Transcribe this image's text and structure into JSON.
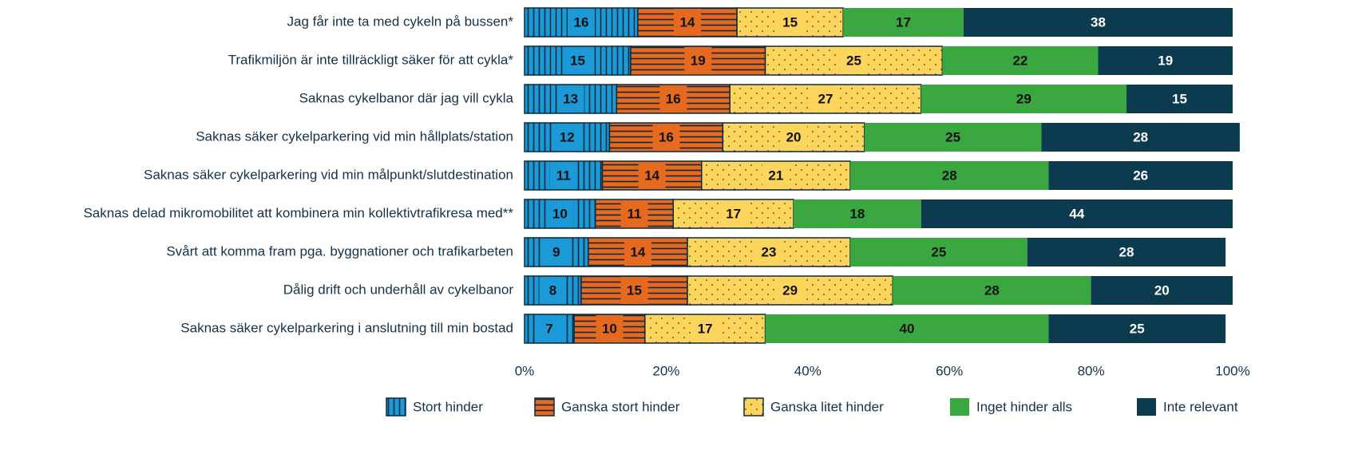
{
  "chart_data": {
    "type": "stacked-barh",
    "categories": [
      "Jag får inte ta med cykeln på bussen*",
      "Trafikmiljön är inte tillräckligt säker för att cykla*",
      "Saknas cykelbanor där jag vill cykla",
      "Saknas säker cykelparkering vid min hållplats/station",
      "Saknas säker cykelparkering vid min målpunkt/slutdestination",
      "Saknas delad mikromobilitet att kombinera min kollektivtrafikresa med**",
      "Svårt att komma fram pga. byggnationer och trafikarbeten",
      "Dålig drift och underhåll av cykelbanor",
      "Saknas säker cykelparkering i anslutning till min bostad"
    ],
    "series": [
      {
        "name": "Stort hinder",
        "color": "#1b9ad7",
        "pattern": "vertical-lines",
        "values": [
          16,
          15,
          13,
          12,
          11,
          10,
          9,
          8,
          7
        ]
      },
      {
        "name": "Ganska stort hinder",
        "color": "#e5691f",
        "pattern": "horizontal-lines",
        "values": [
          14,
          19,
          16,
          16,
          14,
          11,
          14,
          15,
          10
        ]
      },
      {
        "name": "Ganska litet hinder",
        "color": "#fdd55c",
        "pattern": "dots",
        "values": [
          15,
          25,
          27,
          20,
          21,
          17,
          23,
          29,
          17
        ]
      },
      {
        "name": "Inget hinder alls",
        "color": "#3ba740",
        "values": [
          17,
          22,
          29,
          25,
          28,
          18,
          25,
          28,
          40
        ]
      },
      {
        "name": "Inte relevant",
        "color": "#0c3a4e",
        "values": [
          38,
          19,
          15,
          28,
          26,
          44,
          28,
          20,
          25
        ]
      }
    ],
    "xlim": [
      0,
      100
    ],
    "xticks": [
      {
        "value": 0,
        "label": "0%"
      },
      {
        "value": 20,
        "label": "20%"
      },
      {
        "value": 40,
        "label": "40%"
      },
      {
        "value": 60,
        "label": "60%"
      },
      {
        "value": 80,
        "label": "80%"
      },
      {
        "value": 100,
        "label": "100%"
      }
    ]
  }
}
